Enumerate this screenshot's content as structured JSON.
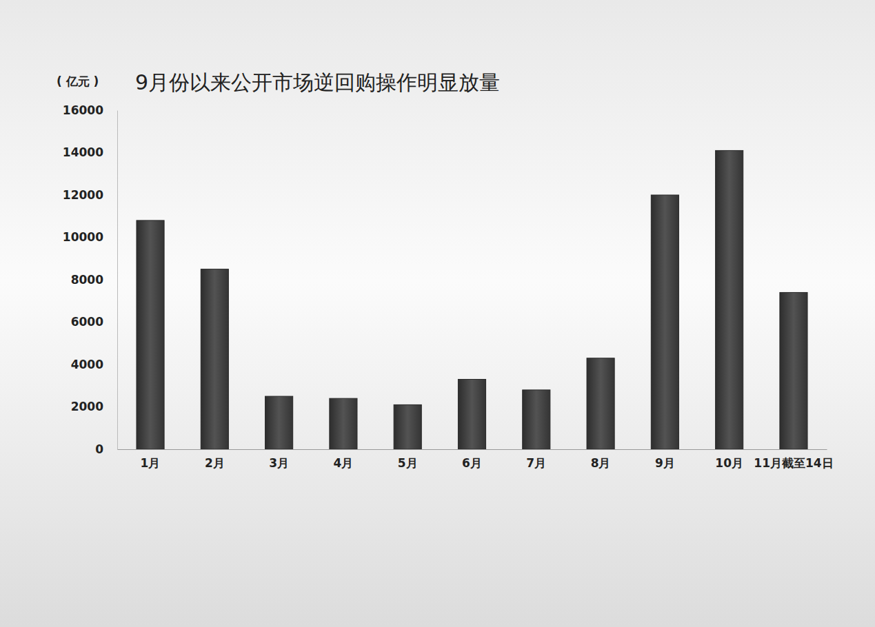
{
  "chart_data": {
    "type": "bar",
    "title": "9月份以来公开市场逆回购操作明显放量",
    "y_label": "( 亿元 )",
    "categories": [
      "1月",
      "2月",
      "3月",
      "4月",
      "5月",
      "6月",
      "7月",
      "8月",
      "9月",
      "10月",
      "11月截至14日"
    ],
    "values": [
      10800,
      8500,
      2500,
      2400,
      2100,
      3300,
      2800,
      4300,
      12000,
      14100,
      7400
    ],
    "color": "#3c3c3c",
    "ylim": [
      0,
      16000
    ],
    "yticks": [
      0,
      2000,
      4000,
      6000,
      8000,
      10000,
      12000,
      14000,
      16000
    ],
    "grid": false
  }
}
